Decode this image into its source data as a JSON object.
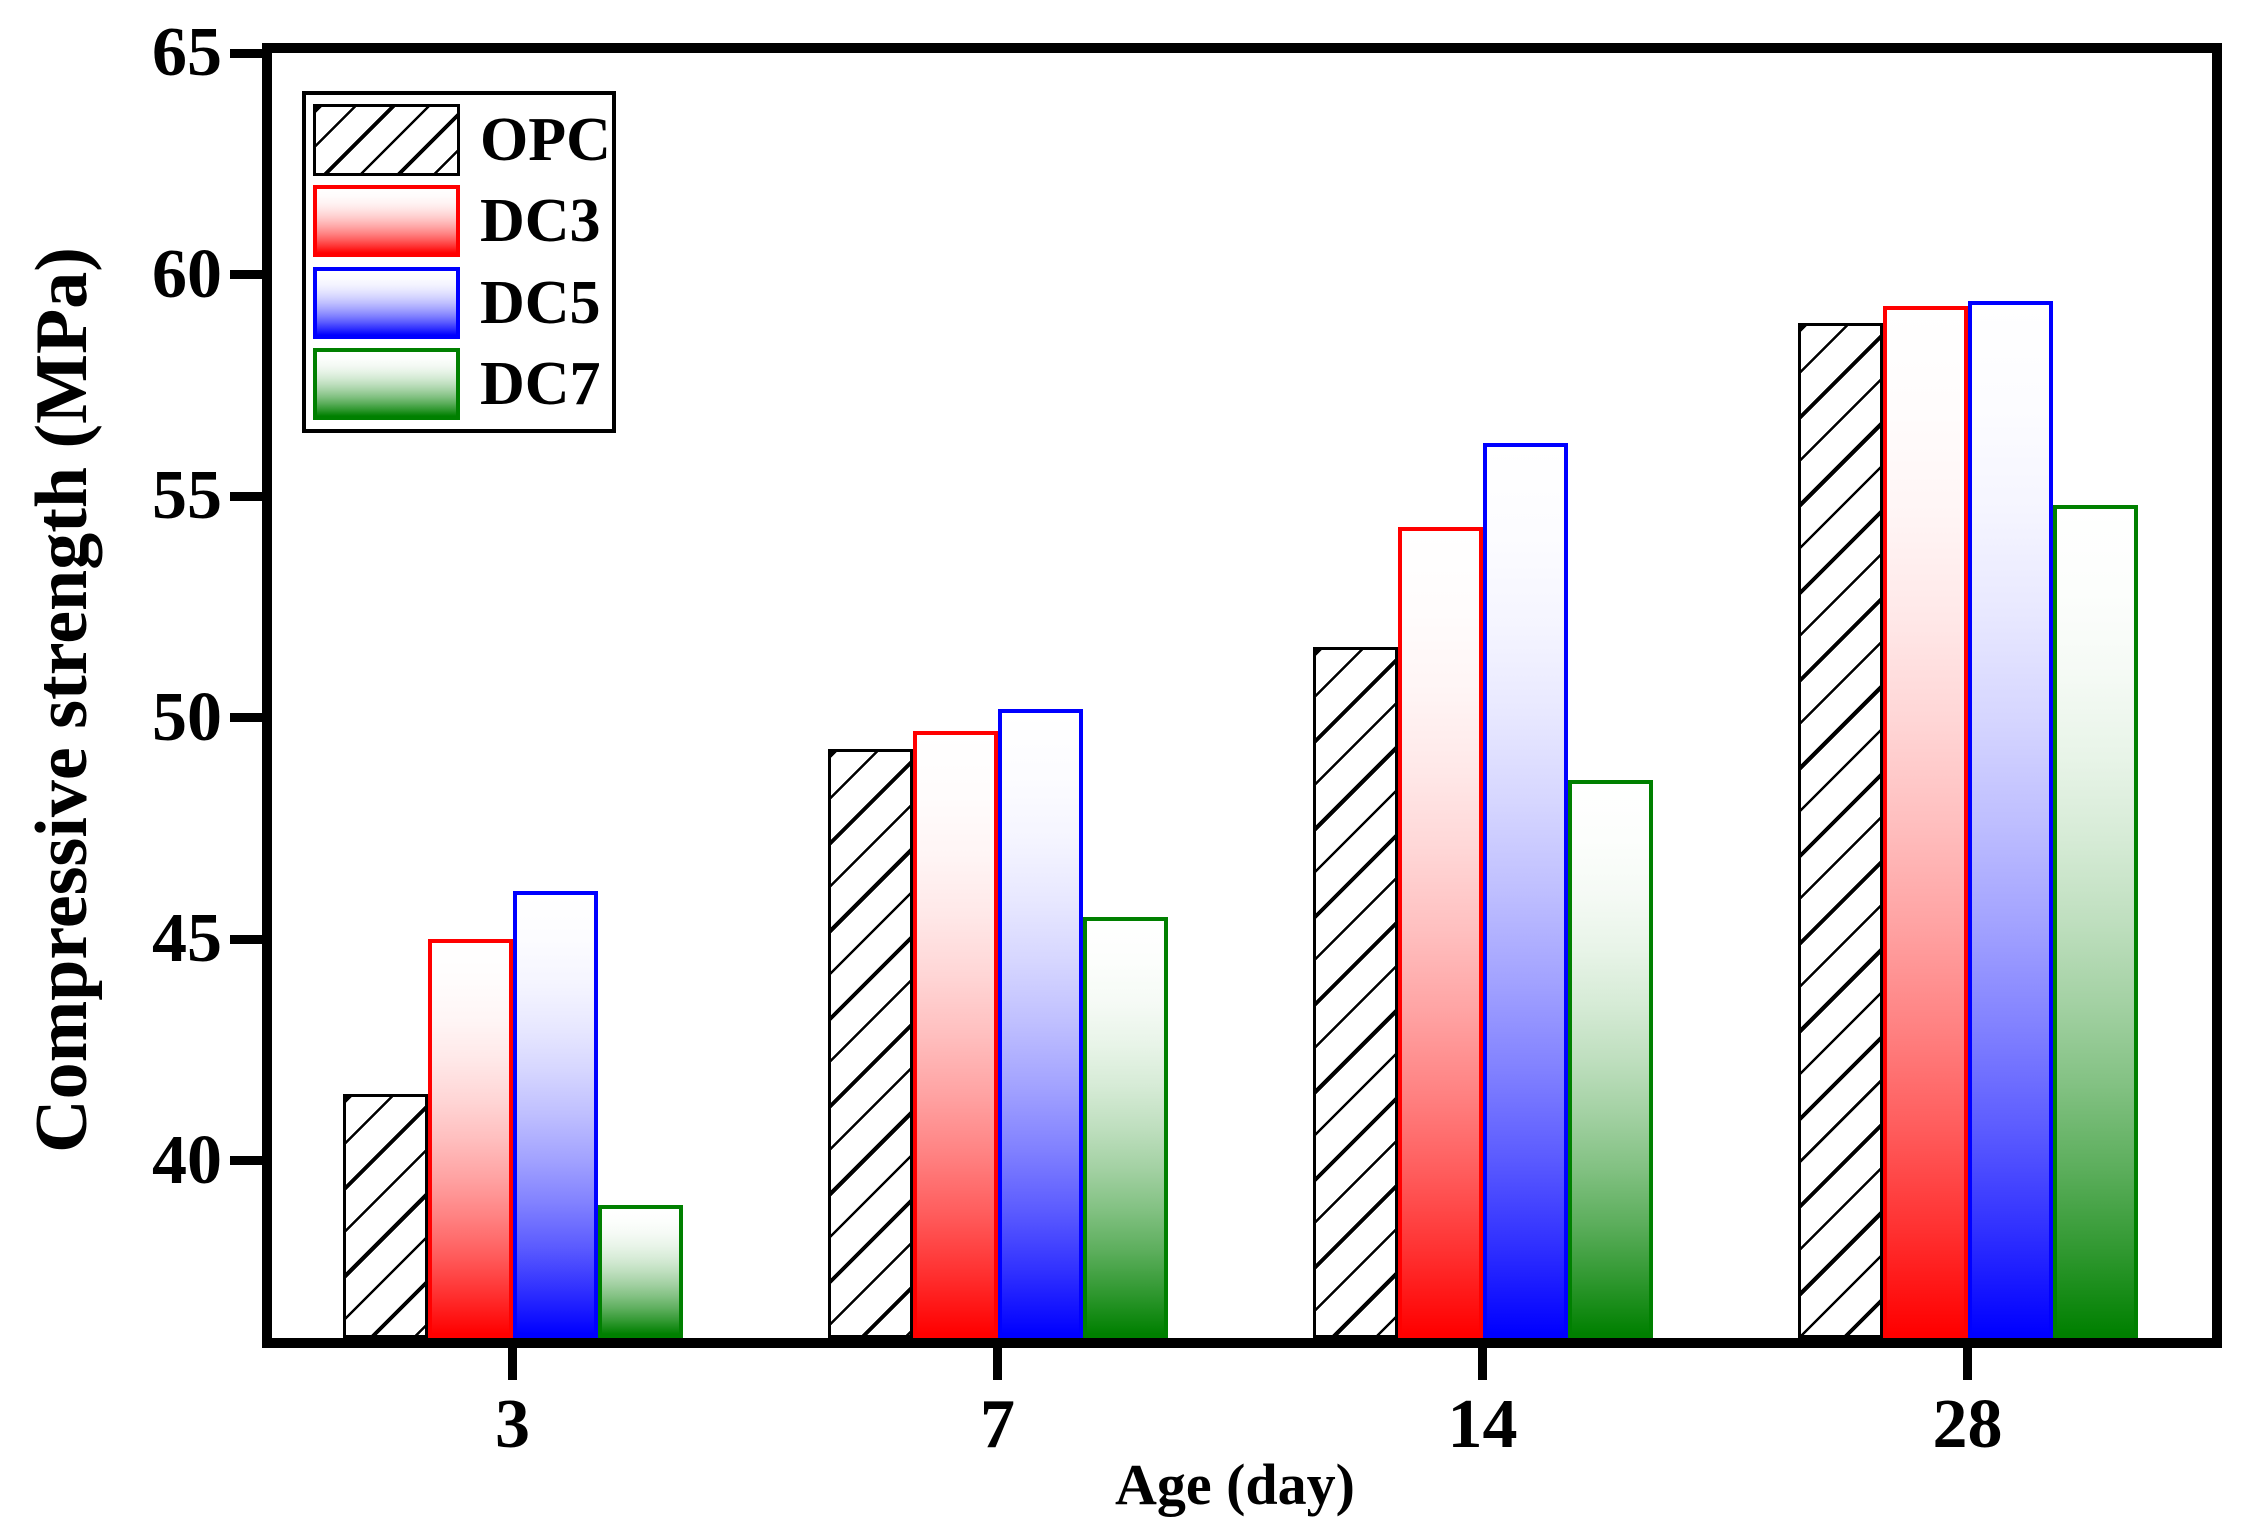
{
  "chart_data": {
    "type": "bar",
    "title": "",
    "xlabel": "Age (day)",
    "ylabel": "Compressive strength (MPa)",
    "categories": [
      "3",
      "7",
      "14",
      "28"
    ],
    "series": [
      {
        "name": "OPC",
        "fill": "hatch",
        "color": "#000000",
        "values": [
          41.5,
          49.3,
          51.6,
          58.9
        ]
      },
      {
        "name": "DC3",
        "fill": "gradient",
        "color": "#ff0000",
        "values": [
          45.0,
          49.7,
          54.3,
          59.3
        ]
      },
      {
        "name": "DC5",
        "fill": "gradient",
        "color": "#0000ff",
        "values": [
          46.1,
          50.2,
          56.2,
          59.4
        ]
      },
      {
        "name": "DC7",
        "fill": "gradient",
        "color": "#008000",
        "values": [
          39.0,
          45.5,
          48.6,
          54.8
        ]
      }
    ],
    "ylim": [
      36,
      65
    ],
    "yticks": [
      40,
      45,
      50,
      55,
      60,
      65
    ],
    "bar_unit": "MPa",
    "legend_position": "upper-left",
    "grid": false,
    "colors": {
      "axis": "#000000",
      "background": "#ffffff",
      "opc_hatch": "#000000",
      "dc3": "#ff0000",
      "dc5": "#0000ff",
      "dc7": "#008000"
    }
  }
}
